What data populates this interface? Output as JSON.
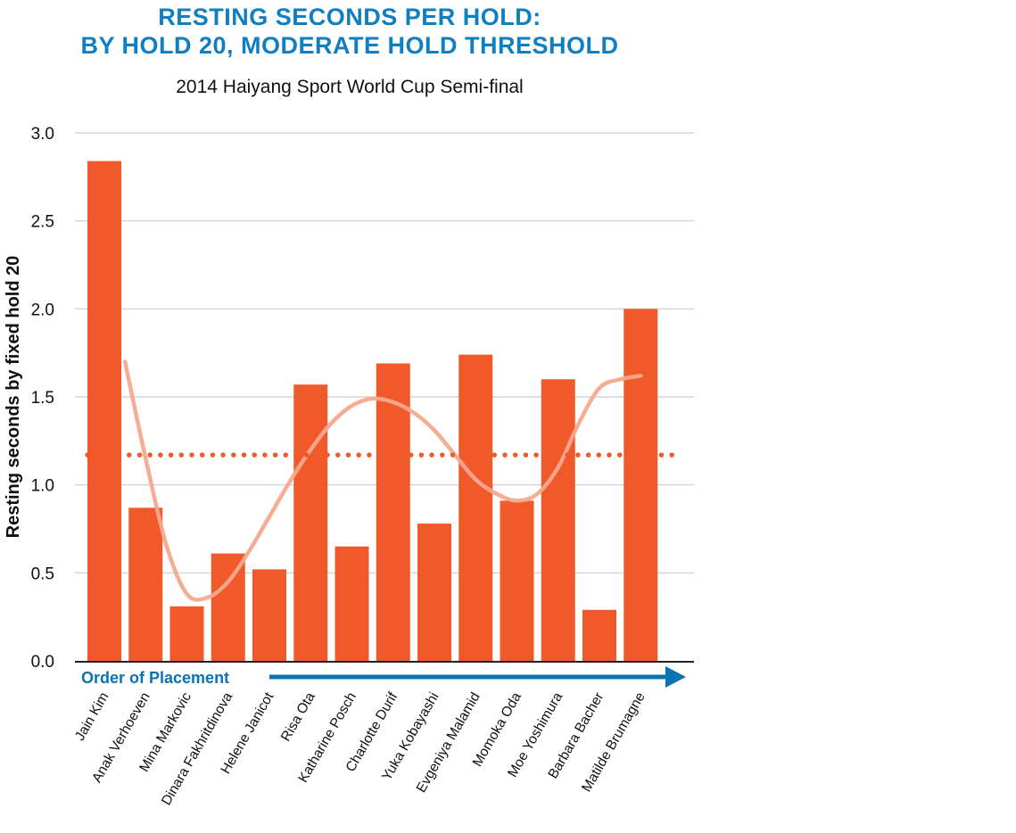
{
  "colors": {
    "title": "#0f7fc1",
    "bar": "#f05a2b",
    "trend": "#f4a98e",
    "threshold": "#f05a2b",
    "arrow": "#0a73b3",
    "grid": "#cccccc",
    "axis": "#222222",
    "text": "#111111"
  },
  "chart_data": {
    "type": "bar",
    "title_lines": [
      "RESTING SECONDS PER HOLD:",
      "BY HOLD 20, MODERATE HOLD THRESHOLD"
    ],
    "subtitle": "2014 Haiyang Sport World Cup Semi-final",
    "xlabel": "Order of Placement",
    "ylabel": "Resting seconds by fixed hold 20",
    "ylim": [
      0,
      3.0
    ],
    "yticks": [
      0.0,
      0.5,
      1.0,
      1.5,
      2.0,
      2.5,
      3.0
    ],
    "ytick_labels": [
      "0.0",
      "0.5",
      "1.0",
      "1.5",
      "2.0",
      "2.5",
      "3.0"
    ],
    "grid": true,
    "categories": [
      "Jain Kim",
      "Anak Verhoeven",
      "Mina Markovic",
      "Dinara Fakhritdinova",
      "Helene Janicot",
      "Risa Ota",
      "Katharine Posch",
      "Charlotte Durif",
      "Yuka Kobayashi",
      "Evgeniya Malamid",
      "Momoka Oda",
      "Moe Yoshimura",
      "Barbara Bacher",
      "Matilde Brumagne"
    ],
    "values": [
      2.84,
      0.87,
      0.31,
      0.61,
      0.52,
      1.57,
      0.65,
      1.69,
      0.78,
      1.74,
      0.91,
      1.6,
      0.29,
      2.0
    ],
    "threshold": 1.17,
    "trend_line": {
      "x": [
        0.5,
        1,
        1.5,
        2,
        2.5,
        3,
        3.5,
        4,
        4.5,
        5,
        5.5,
        6,
        6.5,
        7,
        7.5,
        8,
        8.5,
        9,
        9.5,
        10,
        10.5,
        11,
        11.5,
        12,
        12.5,
        13
      ],
      "y": [
        1.7,
        1.15,
        0.66,
        0.38,
        0.36,
        0.45,
        0.62,
        0.82,
        1.02,
        1.2,
        1.35,
        1.45,
        1.49,
        1.47,
        1.41,
        1.31,
        1.17,
        1.03,
        0.95,
        0.91,
        0.95,
        1.1,
        1.35,
        1.55,
        1.6,
        1.62
      ]
    }
  }
}
